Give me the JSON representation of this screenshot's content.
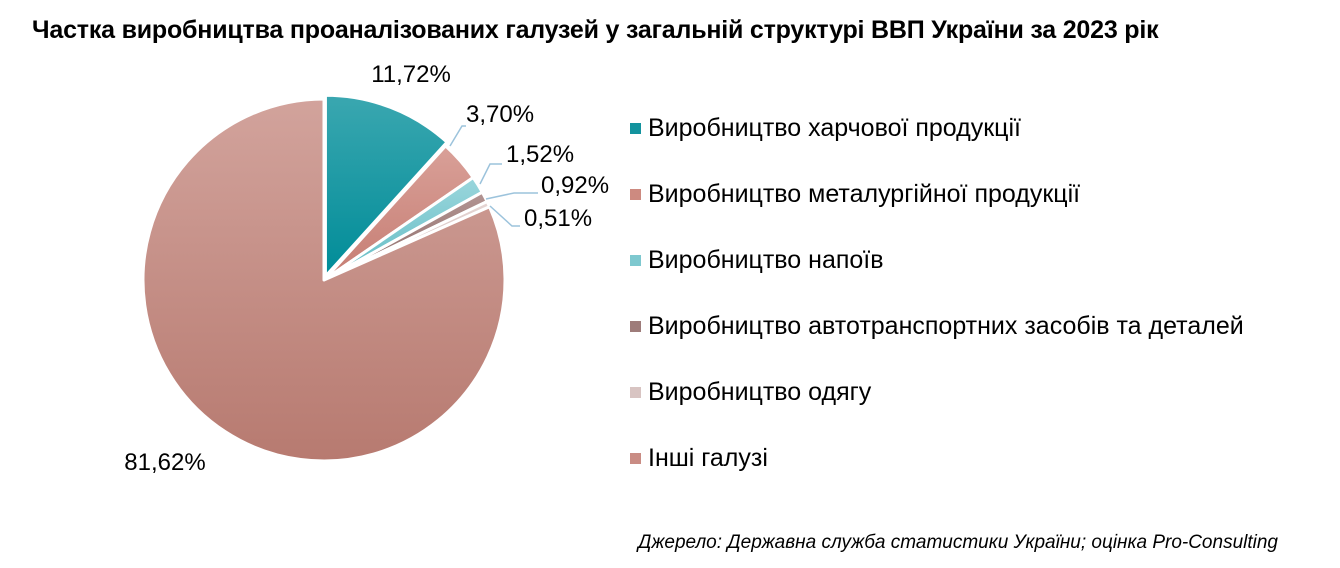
{
  "chart_data": {
    "type": "pie",
    "title": "Частка виробництва проаналізованих галузей у загальній структурі ВВП України за 2023 рік",
    "categories": [
      "Виробництво харчової продукції",
      "Виробництво металургійної продукції",
      "Виробництво напоїв",
      "Виробництво автотранспортних засобів та деталей",
      "Виробництво одягу",
      "Інші галузі"
    ],
    "values": [
      11.72,
      3.7,
      1.52,
      0.92,
      0.51,
      81.62
    ],
    "data_labels": [
      "11,72%",
      "3,70%",
      "1,52%",
      "0,92%",
      "0,51%",
      "81,62%"
    ],
    "colors": [
      "#1797a2",
      "#cd8a80",
      "#7ec8cf",
      "#9e7c7a",
      "#d8c4c2",
      "#c98c84"
    ],
    "exploded_slice": "Виробництво харчової продукції",
    "legend_position": "right",
    "source": "Джерело: Державна служба статистики України; оцінка Pro-Consulting"
  }
}
